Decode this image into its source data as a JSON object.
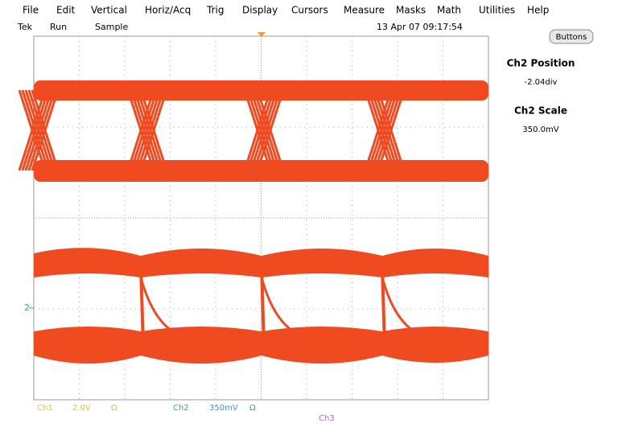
{
  "menu": [
    "File",
    "Edit",
    "Vertical",
    "Horiz/Acq",
    "Trig",
    "Display",
    "Cursors",
    "Measure",
    "Masks",
    "Math",
    "Utilities",
    "Help"
  ],
  "status": {
    "brand": "Tek",
    "state": "Run",
    "mode": "Sample",
    "datetime": "13 Apr 07 09:17:54"
  },
  "button": "Buttons",
  "panel": {
    "position_label": "Ch2 Position",
    "position_value": "-2.04div",
    "scale_label": "Ch2 Scale",
    "scale_value": "350.0mV"
  },
  "markers": {
    "ch2": "2"
  },
  "readout": {
    "ch1": "Ch1",
    "ch1_scale": "2.0V",
    "ch1_term": "Ω",
    "ch2": "Ch2",
    "ch2_scale": "350mV",
    "ch2_term": "Ω",
    "ch3": "Ch3"
  }
}
